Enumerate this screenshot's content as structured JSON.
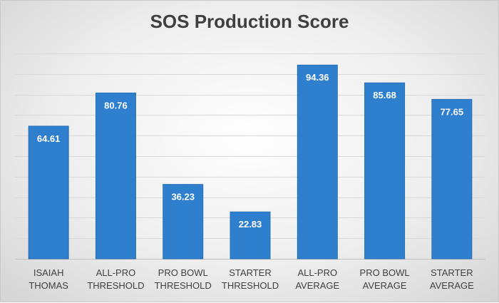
{
  "chart_data": {
    "type": "bar",
    "title": "SOS Production Score",
    "categories": [
      [
        "ISAIAH",
        "THOMAS"
      ],
      [
        "ALL-PRO",
        "THRESHOLD"
      ],
      [
        "PRO BOWL",
        "THRESHOLD"
      ],
      [
        "STARTER",
        "THRESHOLD"
      ],
      [
        "ALL-PRO",
        "AVERAGE"
      ],
      [
        "PRO BOWL",
        "AVERAGE"
      ],
      [
        "STARTER",
        "AVERAGE"
      ]
    ],
    "values": [
      64.61,
      80.76,
      36.23,
      22.83,
      94.36,
      85.68,
      77.65
    ],
    "value_labels": [
      "64.61",
      "80.76",
      "36.23",
      "22.83",
      "94.36",
      "85.68",
      "77.65"
    ],
    "ylim": [
      0,
      100
    ],
    "grid": true,
    "y_axis_labels_shown": false,
    "colors": {
      "bar": "#2f7fcf",
      "bar_edge": "#2a6fb6",
      "grid": "#d9d9d9",
      "axis": "#bfbfbf"
    }
  }
}
